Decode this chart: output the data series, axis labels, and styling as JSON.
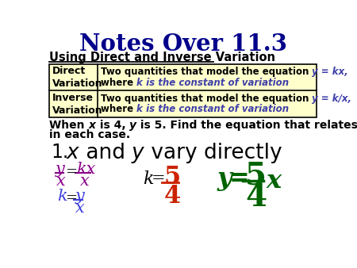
{
  "title": "Notes Over 11.3",
  "title_color": "#00008B",
  "subtitle": "Using Direct and Inverse Variation",
  "subtitle_color": "#000000",
  "table_bg": "#FFFFCC",
  "table_border": "#000000",
  "table_text_black": "#000000",
  "table_text_blue": "#4040AA",
  "row1_left": "Direct\nVariation",
  "row1_right_plain": "Two quantities that model the equation ",
  "row1_right_colored": "y = kx,",
  "row1_right2_plain": "where ",
  "row1_right2_colored": "k is the constant of variation",
  "row2_left": "Inverse\nVariation",
  "row2_right_colored": "y = k/x,",
  "row2_right2_colored": "k is the constant of variation",
  "prob_color": "#000000",
  "item1_color": "#000000",
  "math_purple": "#8B008B",
  "math_blue": "#4040DD",
  "math_red": "#CC2200",
  "math_green": "#006400",
  "math_black": "#000000"
}
